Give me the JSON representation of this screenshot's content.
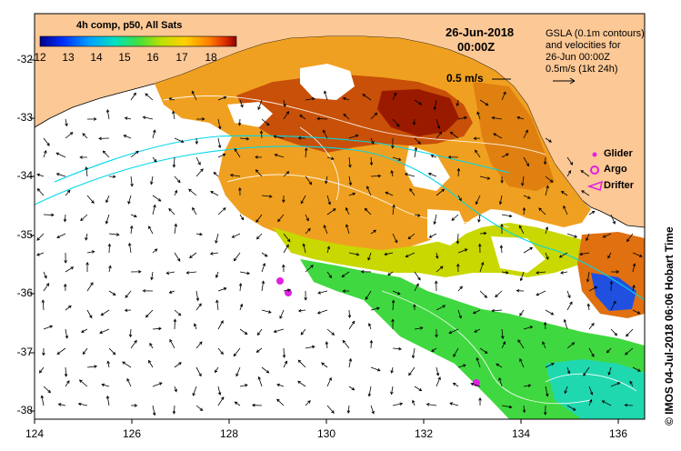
{
  "colorbar": {
    "title": "4h comp, p50, All Sats",
    "ticks": [
      "12",
      "13",
      "14",
      "15",
      "16",
      "17",
      "18"
    ],
    "colors": [
      "#00008c",
      "#0030ff",
      "#00a0ff",
      "#00e0c0",
      "#40e040",
      "#c0e000",
      "#ffd000",
      "#ff8000",
      "#e03000",
      "#900000"
    ]
  },
  "datetime": {
    "date": "26-Jun-2018",
    "time": "00:00Z"
  },
  "info": {
    "line1": "GSLA (0.1m contours)",
    "line2": "and velocities for",
    "line3": "26-Jun 00:00Z",
    "line4": "0.5m/s (1kt 24h)"
  },
  "scale_arrow_label": "0.5 m/s",
  "legend": {
    "glider": "Glider",
    "argo": "Argo",
    "drifter": "Drifter"
  },
  "axes": {
    "x_ticks": [
      "124",
      "126",
      "128",
      "130",
      "132",
      "134",
      "136"
    ],
    "y_ticks": [
      "-32",
      "-33",
      "-34",
      "-35",
      "-36",
      "-37",
      "-38"
    ],
    "xlim": [
      124,
      136.5
    ],
    "ylim": [
      -38.1,
      -31.3
    ]
  },
  "credit": "© IMOS 04-Jul-2018 06:06 Hobart Time",
  "colors": {
    "land": "#fcc896",
    "ocean_blank": "#ffffff",
    "contour": "#ffffff",
    "cyan_track": "#00d8e8",
    "marker": "#e020e0"
  }
}
